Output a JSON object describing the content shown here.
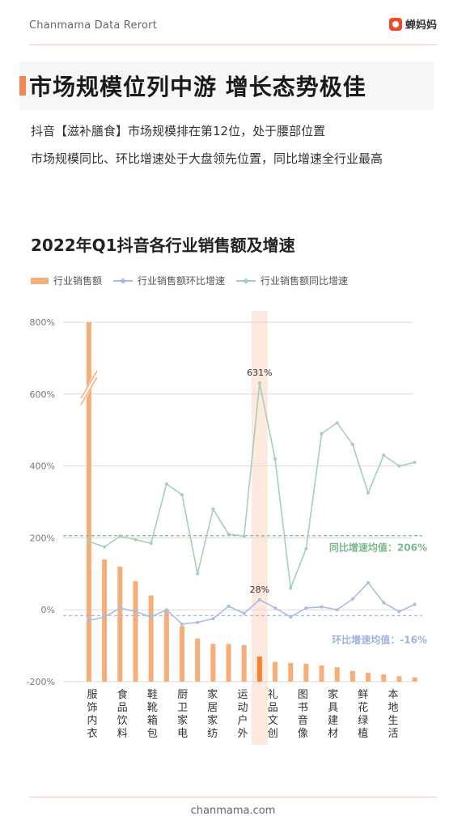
{
  "header": {
    "source": "Chanmama Data Rerort",
    "brand": "蝉妈妈"
  },
  "headline": "市场规模位列中游 增长态势极佳",
  "description": [
    "抖音【滋补膳食】市场规模排在第12位，处于腰部位置",
    "市场规模同比、环比增速处于大盘领先位置，同比增速全行业最高"
  ],
  "footer": "chanmama.com",
  "colors": {
    "bar": "#f6ad78",
    "bar_highlight": "#f5832f",
    "highlight_band": "#fde3d5",
    "mom_line": "#a9bde4",
    "yoy_line": "#a7cfb2",
    "yoy_avg_label": "#7cb98c",
    "mom_avg_label": "#9db2de"
  },
  "chart_data": {
    "type": "bar",
    "title": "2022年Q1抖音各行业销售额及增速",
    "legend": [
      "行业销售额",
      "行业销售额环比增速",
      "行业销售额同比增速"
    ],
    "legend_position": "top-left",
    "y_ticks": [
      "800%",
      "600%",
      "400%",
      "200%",
      "0%",
      "-200%"
    ],
    "ylim": [
      -200,
      800
    ],
    "axis_break": true,
    "grid": true,
    "x_labels": [
      "服饰内衣",
      "食品饮料",
      "鞋靴箱包",
      "厨卫家电",
      "家居家纺",
      "运动户外",
      "礼品文创",
      "图书音像",
      "家具建材",
      "鲜花绿植",
      "本地生活"
    ],
    "highlighted_index": 11,
    "series": [
      {
        "name": "行业销售额",
        "kind": "bar",
        "values": [
          800,
          140,
          120,
          80,
          40,
          0,
          -45,
          -80,
          -95,
          -95,
          -98,
          -130,
          -145,
          -148,
          -150,
          -155,
          -160,
          -170,
          -175,
          -180,
          -185,
          -188
        ]
      },
      {
        "name": "行业销售额环比增速",
        "kind": "line",
        "values": [
          -30,
          -20,
          5,
          -5,
          -20,
          0,
          -40,
          -35,
          -25,
          10,
          -10,
          28,
          5,
          -20,
          5,
          8,
          0,
          30,
          75,
          20,
          -5,
          15
        ]
      },
      {
        "name": "行业销售额同比增速",
        "kind": "line",
        "values": [
          190,
          175,
          205,
          195,
          185,
          350,
          320,
          100,
          280,
          210,
          205,
          631,
          420,
          60,
          170,
          490,
          520,
          460,
          325,
          430,
          400,
          410
        ]
      }
    ],
    "annotations": [
      {
        "text": "631%",
        "series": "行业销售额同比增速",
        "index": 11
      },
      {
        "text": "28%",
        "series": "行业销售额环比增速",
        "index": 11
      },
      {
        "text": "同比增速均值：206%",
        "value": 206
      },
      {
        "text": "环比增速均值：-16%",
        "value": -16
      }
    ]
  }
}
